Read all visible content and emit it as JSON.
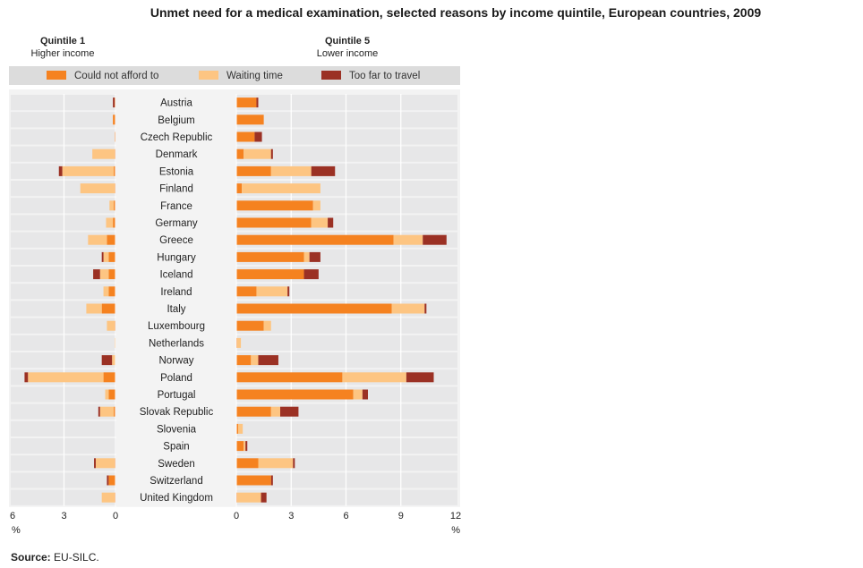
{
  "title": "Unmet need for a medical examination, selected reasons by income quintile, European countries, 2009",
  "source_label": "Source:",
  "source_text": " EU-SILC.",
  "colors": {
    "could_not_afford": "#f58220",
    "waiting_time": "#fdc582",
    "too_far": "#9b3124",
    "row_bg": "#e7e7e8",
    "legend_bg": "#dcdcdc"
  },
  "chart_data": {
    "type": "bar",
    "orientation": "horizontal",
    "stacked": true,
    "panels": [
      {
        "title": "Quintile 1",
        "subtitle": "Higher income",
        "xlim": [
          0,
          6
        ],
        "reversed": true,
        "ticks": [
          6,
          3,
          0
        ],
        "unit": "%"
      },
      {
        "title": "Quintile 5",
        "subtitle": "Lower income",
        "xlim": [
          0,
          12
        ],
        "reversed": false,
        "ticks": [
          0,
          3,
          6,
          9,
          12
        ],
        "unit": "%"
      }
    ],
    "legend": [
      "Could not afford to",
      "Waiting time",
      "Too far to travel"
    ],
    "categories": [
      "Austria",
      "Belgium",
      "Czech Republic",
      "Denmark",
      "Estonia",
      "Finland",
      "France",
      "Germany",
      "Greece",
      "Hungary",
      "Iceland",
      "Ireland",
      "Italy",
      "Luxembourg",
      "Netherlands",
      "Norway",
      "Poland",
      "Portugal",
      "Slovak Republic",
      "Slovenia",
      "Spain",
      "Sweden",
      "Switzerland",
      "United Kingdom"
    ],
    "quintile1": {
      "could_not_afford": [
        0.05,
        0.15,
        0.05,
        0.05,
        0.1,
        0.05,
        0.1,
        0.15,
        0.5,
        0.4,
        0.4,
        0.4,
        0.8,
        0.05,
        0.0,
        0.0,
        0.7,
        0.4,
        0.1,
        0.0,
        0.0,
        0.05,
        0.4,
        0.05
      ],
      "waiting_time": [
        0.0,
        0.0,
        0.0,
        1.3,
        3.0,
        2.0,
        0.25,
        0.4,
        1.1,
        0.3,
        0.5,
        0.3,
        0.9,
        0.45,
        0.05,
        0.2,
        4.4,
        0.2,
        0.8,
        0.0,
        0.0,
        1.1,
        0.0,
        0.75
      ],
      "too_far": [
        0.1,
        0.0,
        0.0,
        0.0,
        0.2,
        0.0,
        0.0,
        0.0,
        0.0,
        0.1,
        0.4,
        0.0,
        0.0,
        0.0,
        0.0,
        0.6,
        0.2,
        0.0,
        0.1,
        0.0,
        0.0,
        0.1,
        0.1,
        0.0
      ]
    },
    "quintile5": {
      "could_not_afford": [
        1.1,
        1.5,
        1.0,
        0.4,
        1.9,
        0.3,
        4.2,
        4.1,
        8.6,
        3.7,
        3.7,
        1.1,
        8.5,
        1.5,
        0.05,
        0.8,
        5.8,
        6.4,
        1.9,
        0.1,
        0.4,
        1.2,
        1.9,
        0.05
      ],
      "waiting_time": [
        0.0,
        0.0,
        0.0,
        1.5,
        2.2,
        4.3,
        0.4,
        0.9,
        1.6,
        0.3,
        0.0,
        1.7,
        1.8,
        0.4,
        0.2,
        0.4,
        3.5,
        0.5,
        0.5,
        0.25,
        0.1,
        1.9,
        0.0,
        1.3
      ],
      "too_far": [
        0.1,
        0.0,
        0.4,
        0.1,
        1.3,
        0.0,
        0.0,
        0.3,
        1.3,
        0.6,
        0.8,
        0.1,
        0.1,
        0.0,
        0.0,
        1.1,
        1.5,
        0.3,
        1.0,
        0.0,
        0.1,
        0.1,
        0.1,
        0.3
      ]
    }
  }
}
